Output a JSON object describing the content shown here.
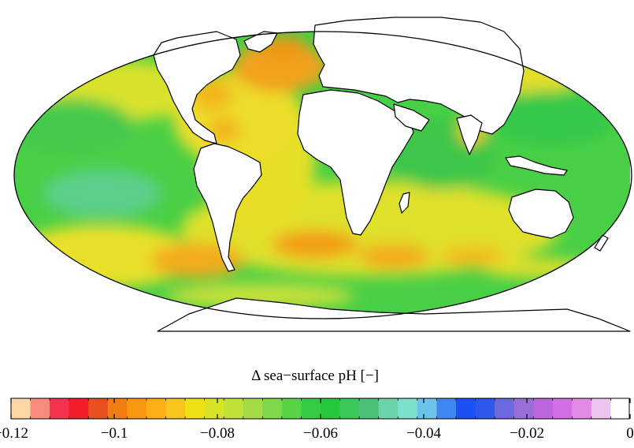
{
  "colorbar": {
    "title": "Δ sea−surface pH [−]",
    "min": -0.12,
    "max": 0.0,
    "step": 0.005,
    "colors": [
      "#fdd6a6",
      "#f98a7e",
      "#f5324f",
      "#f21c2a",
      "#e8501f",
      "#f07d12",
      "#f79810",
      "#fbae16",
      "#f7c51b",
      "#efe114",
      "#d7e324",
      "#c0e13a",
      "#a3dc44",
      "#7ed84a",
      "#58d348",
      "#36cb44",
      "#23c83c",
      "#3ac85a",
      "#4bc078",
      "#6bd3ac",
      "#7de0cc",
      "#6cc2ea",
      "#3f87ee",
      "#1b50f4",
      "#2f58ea",
      "#6c6ade",
      "#9a6ed8",
      "#bb66de",
      "#d46ee4",
      "#e38ae6",
      "#ecc4ee",
      "#ffffff"
    ],
    "ticks": [
      {
        "value": -0.12,
        "label": "−0.12"
      },
      {
        "value": -0.1,
        "label": "−0.1"
      },
      {
        "value": -0.08,
        "label": "−0.08"
      },
      {
        "value": -0.06,
        "label": "−0.06"
      },
      {
        "value": -0.04,
        "label": "−0.04"
      },
      {
        "value": -0.02,
        "label": "−0.02"
      },
      {
        "value": 0.0,
        "label": "0"
      }
    ]
  },
  "map": {
    "projection": "Mollweide",
    "colors": {
      "ocean_base": "#49cf46",
      "land": "#ffffff",
      "coast": "#000000"
    }
  }
}
